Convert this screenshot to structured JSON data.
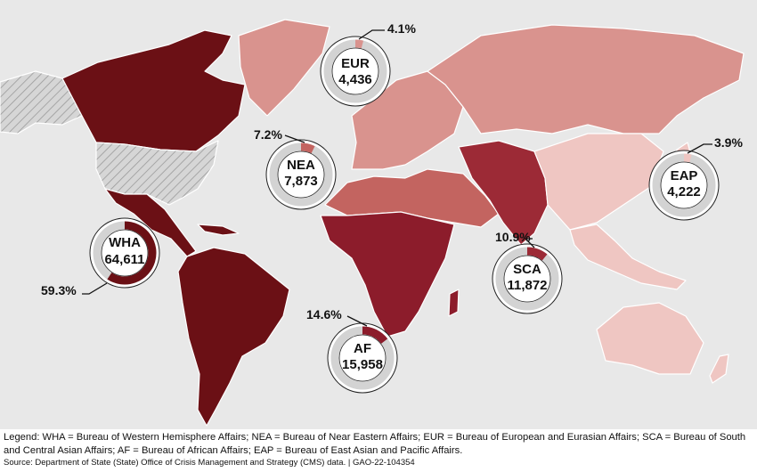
{
  "colors": {
    "ocean": "#e8e8e8",
    "WHA": "#6b1015",
    "AF": "#8c1c2b",
    "SCA": "#9c2a36",
    "NEA": "#c36460",
    "EUR": "#d9938e",
    "EAP": "#efc6c2",
    "unassigned": "#d0d0d0",
    "donut_base": "#d3d3d3"
  },
  "regions": [
    {
      "code": "WHA",
      "value": "64,611",
      "percent": "59.3%",
      "fraction": 0.593
    },
    {
      "code": "NEA",
      "value": "7,873",
      "percent": "7.2%",
      "fraction": 0.072
    },
    {
      "code": "EUR",
      "value": "4,436",
      "percent": "4.1%",
      "fraction": 0.041
    },
    {
      "code": "SCA",
      "value": "11,872",
      "percent": "10.9%",
      "fraction": 0.109
    },
    {
      "code": "AF",
      "value": "15,958",
      "percent": "14.6%",
      "fraction": 0.146
    },
    {
      "code": "EAP",
      "value": "4,222",
      "percent": "3.9%",
      "fraction": 0.039
    }
  ],
  "legend": "Legend: WHA = Bureau of Western Hemisphere Affairs; NEA = Bureau of Near Eastern Affairs; EUR = Bureau of European and Eurasian Affairs; SCA = Bureau of South and Central Asian Affairs; AF = Bureau of African Affairs; EAP = Bureau of East Asian and Pacific Affairs.",
  "source": "Source: Department of State (State) Office of Crisis Management and Strategy (CMS) data.  |  GAO-22-104354"
}
